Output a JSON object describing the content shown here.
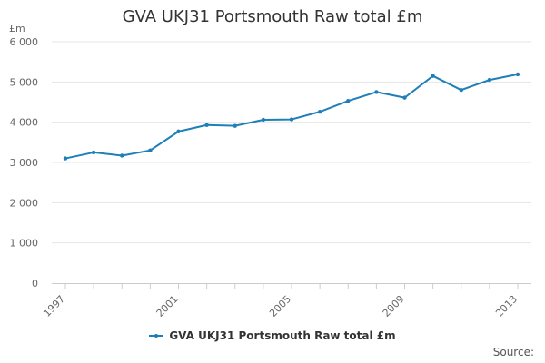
{
  "chart_data": {
    "type": "line",
    "title": "GVA UKJ31 Portsmouth Raw total £m",
    "ylabel": "£m",
    "xlabel": "",
    "x": [
      1997,
      1998,
      1999,
      2000,
      2001,
      2002,
      2003,
      2004,
      2005,
      2006,
      2007,
      2008,
      2009,
      2010,
      2011,
      2012,
      2013
    ],
    "x_tick_labels": [
      "1997",
      "2001",
      "2005",
      "2009",
      "2013"
    ],
    "y_tick_labels": [
      "0",
      "1 000",
      "2 000",
      "3 000",
      "4 000",
      "5 000",
      "6 000"
    ],
    "ylim": [
      0,
      6000
    ],
    "grid": true,
    "legend_position": "bottom",
    "series": [
      {
        "name": "GVA UKJ31 Portsmouth Raw total £m",
        "color": "#1f7fb8",
        "values": [
          3100,
          3250,
          3170,
          3300,
          3770,
          3930,
          3910,
          4060,
          4070,
          4260,
          4530,
          4750,
          4610,
          5150,
          4800,
          5050,
          5190
        ]
      }
    ]
  },
  "source_label": "Source:"
}
